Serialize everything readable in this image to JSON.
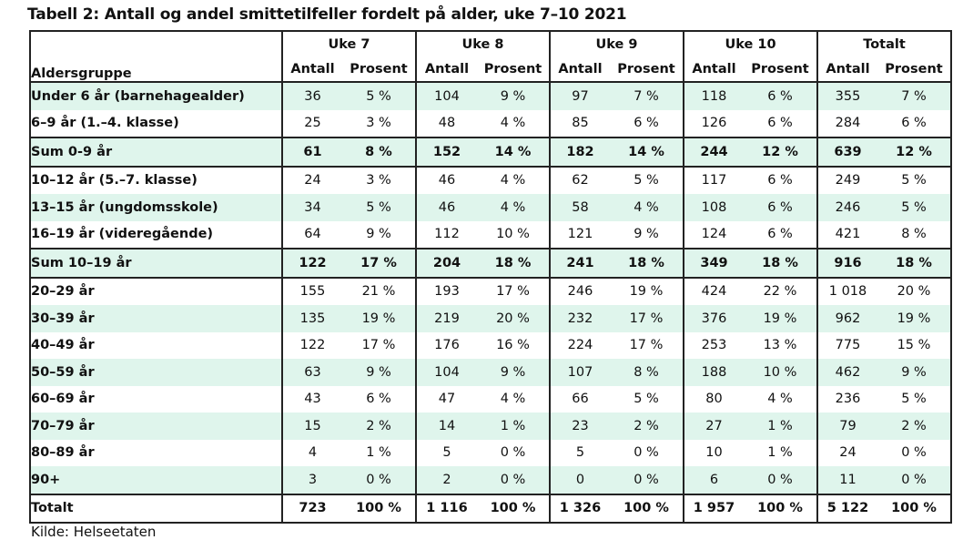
{
  "title": "Tabell 2: Antall og andel smittetilfeller fordelt på alder, uke 7–10 2021",
  "source": "Kilde: Helseetaten",
  "header": {
    "age_group": "Aldersgruppe",
    "weeks": [
      "Uke 7",
      "Uke 8",
      "Uke 9",
      "Uke 10",
      "Totalt"
    ],
    "antall": "Antall",
    "prosent": "Prosent"
  },
  "rows": [
    {
      "label": "Under 6 år (barnehagealder)",
      "style": "green",
      "cells": [
        "36",
        "5 %",
        "104",
        "9 %",
        "97",
        "7 %",
        "118",
        "6 %",
        "355",
        "7 %"
      ]
    },
    {
      "label": "6–9 år (1.–4. klasse)",
      "style": "plain",
      "cells": [
        "25",
        "3 %",
        "48",
        "4 %",
        "85",
        "6 %",
        "126",
        "6 %",
        "284",
        "6 %"
      ]
    },
    {
      "label": "Sum 0-9 år",
      "style": "sum",
      "cells": [
        "61",
        "8 %",
        "152",
        "14 %",
        "182",
        "14 %",
        "244",
        "12 %",
        "639",
        "12 %"
      ]
    },
    {
      "label": "10–12 år (5.–7. klasse)",
      "style": "plain",
      "cells": [
        "24",
        "3 %",
        "46",
        "4 %",
        "62",
        "5 %",
        "117",
        "6 %",
        "249",
        "5 %"
      ]
    },
    {
      "label": "13–15 år (ungdomsskole)",
      "style": "green",
      "cells": [
        "34",
        "5 %",
        "46",
        "4 %",
        "58",
        "4 %",
        "108",
        "6 %",
        "246",
        "5 %"
      ]
    },
    {
      "label": "16–19 år (videregående)",
      "style": "plain",
      "cells": [
        "64",
        "9 %",
        "112",
        "10 %",
        "121",
        "9 %",
        "124",
        "6 %",
        "421",
        "8 %"
      ]
    },
    {
      "label": "Sum 10–19 år",
      "style": "sum",
      "cells": [
        "122",
        "17 %",
        "204",
        "18 %",
        "241",
        "18 %",
        "349",
        "18 %",
        "916",
        "18 %"
      ]
    },
    {
      "label": "20–29 år",
      "style": "plain",
      "cells": [
        "155",
        "21 %",
        "193",
        "17 %",
        "246",
        "19 %",
        "424",
        "22 %",
        "1 018",
        "20 %"
      ]
    },
    {
      "label": "30–39 år",
      "style": "green",
      "cells": [
        "135",
        "19 %",
        "219",
        "20 %",
        "232",
        "17 %",
        "376",
        "19 %",
        "962",
        "19 %"
      ]
    },
    {
      "label": "40–49 år",
      "style": "plain",
      "cells": [
        "122",
        "17 %",
        "176",
        "16 %",
        "224",
        "17 %",
        "253",
        "13 %",
        "775",
        "15 %"
      ]
    },
    {
      "label": "50–59 år",
      "style": "green",
      "cells": [
        "63",
        "9 %",
        "104",
        "9 %",
        "107",
        "8 %",
        "188",
        "10 %",
        "462",
        "9 %"
      ]
    },
    {
      "label": "60–69 år",
      "style": "plain",
      "cells": [
        "43",
        "6 %",
        "47",
        "4 %",
        "66",
        "5 %",
        "80",
        "4 %",
        "236",
        "5 %"
      ]
    },
    {
      "label": "70–79 år",
      "style": "green",
      "cells": [
        "15",
        "2 %",
        "14",
        "1 %",
        "23",
        "2 %",
        "27",
        "1 %",
        "79",
        "2 %"
      ]
    },
    {
      "label": "80–89 år",
      "style": "plain",
      "cells": [
        "4",
        "1 %",
        "5",
        "0 %",
        "5",
        "0 %",
        "10",
        "1 %",
        "24",
        "0 %"
      ]
    },
    {
      "label": "90+",
      "style": "green",
      "cells": [
        "3",
        "0 %",
        "2",
        "0 %",
        "0",
        "0 %",
        "6",
        "0 %",
        "11",
        "0 %"
      ]
    },
    {
      "label": "Totalt",
      "style": "total",
      "cells": [
        "723",
        "100 %",
        "1 116",
        "100 %",
        "1 326",
        "100 %",
        "1 957",
        "100 %",
        "5 122",
        "100 %"
      ]
    }
  ]
}
